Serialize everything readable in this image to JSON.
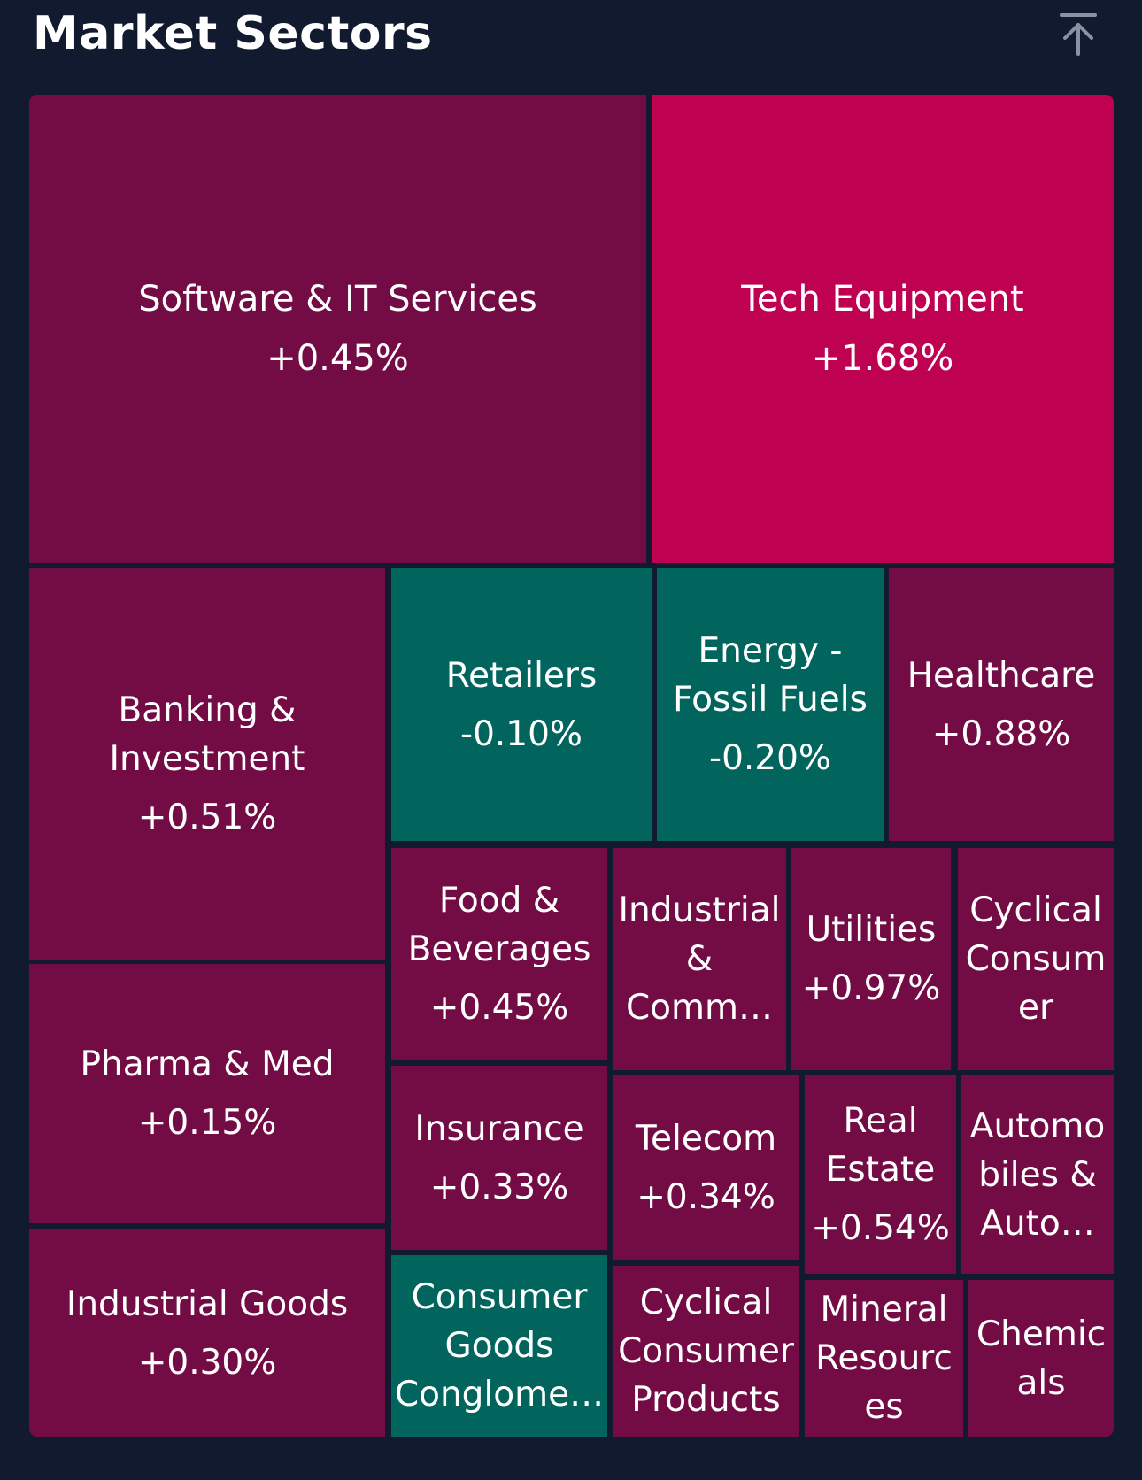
{
  "page": {
    "title": "Market Sectors",
    "icon": "arrow-up-to-top-icon"
  },
  "colors": {
    "background": "#121a30",
    "positive": "#730c44",
    "strong_positive": "#bf0152",
    "negative": "#01645d"
  },
  "chart_data": {
    "type": "treemap",
    "title": "Market Sectors",
    "items": [
      {
        "name": "Software & IT Services",
        "label": "Software & IT Services",
        "change": "+0.45%",
        "value": 0.45
      },
      {
        "name": "Tech Equipment",
        "label": "Tech Equipment",
        "change": "+1.68%",
        "value": 1.68
      },
      {
        "name": "Banking & Investment",
        "label": "Banking &\nInvestment",
        "change": "+0.51%",
        "value": 0.51
      },
      {
        "name": "Retailers",
        "label": "Retailers",
        "change": "-0.10%",
        "value": -0.1
      },
      {
        "name": "Energy - Fossil Fuels",
        "label": "Energy -\nFossil Fuels",
        "change": "-0.20%",
        "value": -0.2
      },
      {
        "name": "Healthcare",
        "label": "Healthcare",
        "change": "+0.88%",
        "value": 0.88
      },
      {
        "name": "Pharma & Med",
        "label": "Pharma & Med",
        "change": "+0.15%",
        "value": 0.15
      },
      {
        "name": "Food & Beverages",
        "label": "Food &\nBeverages",
        "change": "+0.45%",
        "value": 0.45
      },
      {
        "name": "Industrial & Comm...",
        "label": "Industrial\n&\nComm…",
        "change": "",
        "value": null
      },
      {
        "name": "Utilities",
        "label": "Utilities",
        "change": "+0.97%",
        "value": 0.97
      },
      {
        "name": "Cyclical Consumer",
        "label": "Cyclical\nConsum\ner",
        "change": "",
        "value": null
      },
      {
        "name": "Industrial Goods",
        "label": "Industrial Goods",
        "change": "+0.30%",
        "value": 0.3
      },
      {
        "name": "Insurance",
        "label": "Insurance",
        "change": "+0.33%",
        "value": 0.33
      },
      {
        "name": "Telecom",
        "label": "Telecom",
        "change": "+0.34%",
        "value": 0.34
      },
      {
        "name": "Real Estate",
        "label": "Real\nEstate",
        "change": "+0.54%",
        "value": 0.54
      },
      {
        "name": "Automobiles & Auto...",
        "label": "Automo\nbiles &\nAuto…",
        "change": "",
        "value": null
      },
      {
        "name": "Consumer Goods Conglomerates",
        "label": "Consumer\nGoods\nConglome…",
        "change": "",
        "value": null
      },
      {
        "name": "Cyclical Consumer Products",
        "label": "Cyclical\nConsumer\nProducts",
        "change": "",
        "value": null
      },
      {
        "name": "Mineral Resources",
        "label": "Mineral\nResourc\nes",
        "change": "",
        "value": null
      },
      {
        "name": "Chemicals",
        "label": "Chemic\nals",
        "change": "",
        "value": null
      }
    ]
  }
}
